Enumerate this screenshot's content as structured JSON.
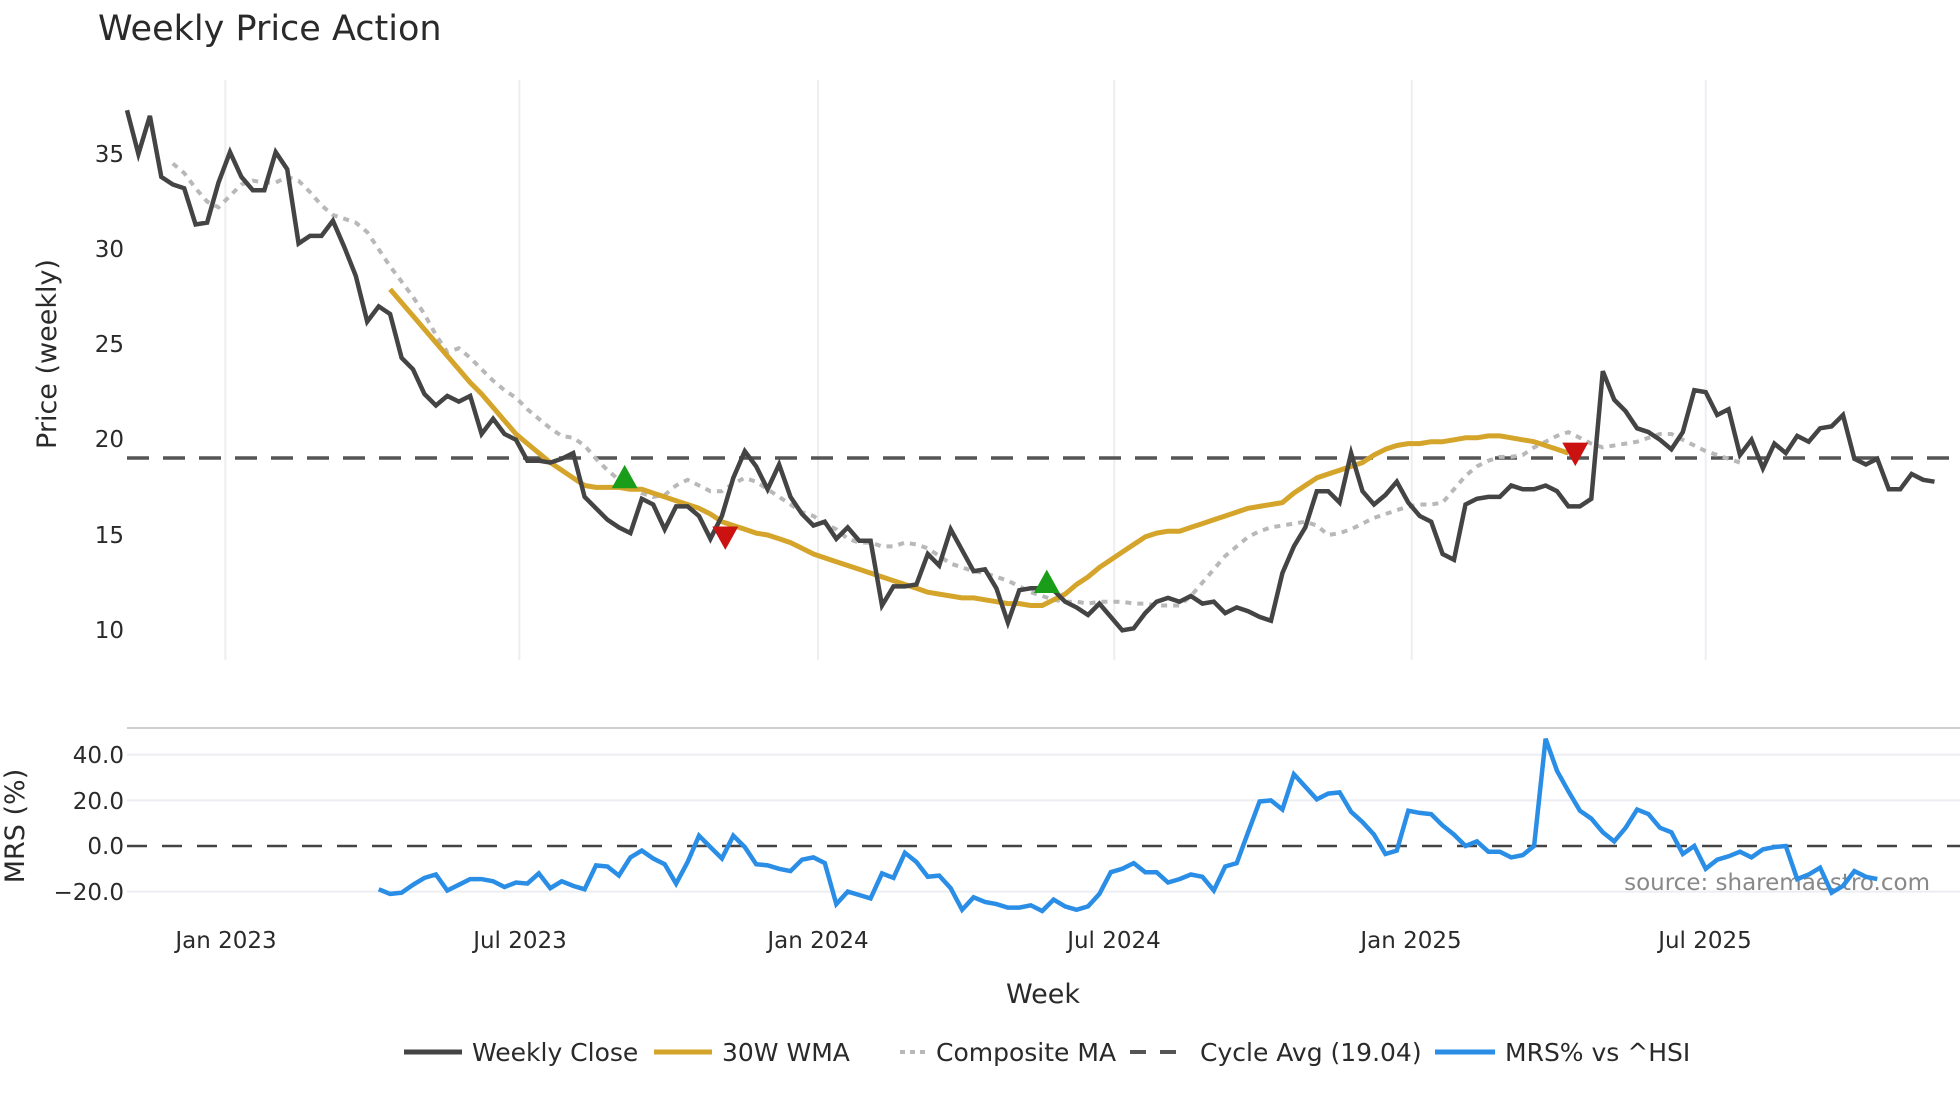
{
  "chart_data": [
    {
      "type": "line",
      "title": "Weekly Price Action",
      "xlabel": "Week",
      "ylabel": "Price (weekly)",
      "ylim": [
        8.5,
        38
      ],
      "yticks": [
        10,
        15,
        20,
        25,
        30,
        35
      ],
      "x_tick_labels": [
        "Jan 2023",
        "Jul 2023",
        "Jan 2024",
        "Jul 2024",
        "Jan 2025",
        "Jul 2025"
      ],
      "x_tick_weeks": [
        8.6,
        34.3,
        60.4,
        86.3,
        112.3,
        138.0
      ],
      "grid": "vertical",
      "reference_line": {
        "name": "Cycle Avg (19.04)",
        "value": 19.04
      },
      "series": [
        {
          "name": "Weekly Close",
          "start_week": 0,
          "values": [
            37.3,
            35.0,
            37.0,
            33.8,
            33.4,
            33.2,
            31.3,
            31.4,
            33.5,
            35.1,
            33.8,
            33.1,
            33.1,
            35.1,
            34.2,
            30.3,
            30.7,
            30.7,
            31.5,
            30.1,
            28.6,
            26.2,
            27.0,
            26.6,
            24.3,
            23.7,
            22.4,
            21.8,
            22.3,
            22.0,
            22.3,
            20.3,
            21.1,
            20.3,
            20.0,
            18.9,
            18.9,
            18.8,
            19.0,
            19.3,
            17.0,
            16.4,
            15.8,
            15.4,
            15.1,
            16.9,
            16.6,
            15.3,
            16.5,
            16.5,
            16.0,
            14.8,
            16.0,
            18.0,
            19.4,
            18.6,
            17.4,
            18.7,
            17.0,
            16.1,
            15.5,
            15.7,
            14.8,
            15.4,
            14.7,
            14.7,
            11.3,
            12.3,
            12.3,
            12.4,
            14.0,
            13.4,
            15.3,
            14.2,
            13.1,
            13.2,
            12.2,
            10.4,
            12.1,
            12.2,
            12.2,
            12.1,
            11.5,
            11.2,
            10.8,
            11.4,
            10.7,
            10.0,
            10.1,
            10.9,
            11.5,
            11.7,
            11.5,
            11.8,
            11.4,
            11.5,
            10.9,
            11.2,
            11.0,
            10.7,
            10.5,
            13.0,
            14.4,
            15.4,
            17.3,
            17.3,
            16.7,
            19.3,
            17.3,
            16.6,
            17.1,
            17.8,
            16.7,
            16.0,
            15.7,
            14.0,
            13.7,
            16.6,
            16.9,
            17.0,
            17.0,
            17.6,
            17.4,
            17.4,
            17.6,
            17.3,
            16.5,
            16.5,
            16.9,
            23.6,
            22.1,
            21.5,
            20.6,
            20.4,
            20.0,
            19.5,
            20.4,
            22.6,
            22.5,
            21.3,
            21.6,
            19.2,
            20.0,
            18.5,
            19.8,
            19.3,
            20.2,
            19.9,
            20.6,
            20.7,
            21.3,
            19.0,
            18.7,
            19.0,
            17.4,
            17.4,
            18.2,
            17.9,
            17.8
          ]
        },
        {
          "name": "30W WMA",
          "start_week": 23,
          "values": [
            27.9,
            27.2,
            26.5,
            25.8,
            25.1,
            24.4,
            23.7,
            23.0,
            22.4,
            21.7,
            21.0,
            20.3,
            19.8,
            19.3,
            18.8,
            18.4,
            18.0,
            17.6,
            17.5,
            17.5,
            17.5,
            17.4,
            17.4,
            17.2,
            17.0,
            16.8,
            16.6,
            16.4,
            16.1,
            15.7,
            15.5,
            15.3,
            15.1,
            15.0,
            14.8,
            14.6,
            14.3,
            14.0,
            13.8,
            13.6,
            13.4,
            13.2,
            13.0,
            12.8,
            12.6,
            12.4,
            12.2,
            12.0,
            11.9,
            11.8,
            11.7,
            11.7,
            11.6,
            11.5,
            11.4,
            11.4,
            11.3,
            11.3,
            11.6,
            11.9,
            12.4,
            12.8,
            13.3,
            13.7,
            14.1,
            14.5,
            14.9,
            15.1,
            15.2,
            15.2,
            15.4,
            15.6,
            15.8,
            16.0,
            16.2,
            16.4,
            16.5,
            16.6,
            16.7,
            17.2,
            17.6,
            18.0,
            18.2,
            18.4,
            18.6,
            18.8,
            19.2,
            19.5,
            19.7,
            19.8,
            19.8,
            19.9,
            19.9,
            20.0,
            20.1,
            20.1,
            20.2,
            20.2,
            20.1,
            20.0,
            19.9,
            19.7,
            19.5,
            19.3
          ]
        },
        {
          "name": "Composite MA",
          "start_week": 4,
          "values": [
            34.5,
            34.0,
            33.2,
            32.5,
            32.2,
            32.8,
            33.4,
            33.6,
            33.5,
            33.5,
            33.8,
            33.6,
            33.0,
            32.3,
            31.8,
            31.6,
            31.4,
            30.9,
            30.0,
            29.1,
            28.3,
            27.5,
            26.6,
            25.5,
            24.6,
            24.8,
            24.3,
            23.7,
            23.1,
            22.6,
            22.2,
            21.6,
            21.1,
            20.6,
            20.2,
            20.1,
            19.7,
            19.0,
            18.4,
            17.9,
            17.6,
            17.2,
            17.0,
            17.1,
            17.6,
            17.9,
            17.6,
            17.3,
            17.3,
            17.7,
            18.0,
            17.8,
            17.4,
            17.0,
            16.6,
            16.2,
            16.0,
            15.6,
            15.3,
            14.8,
            14.6,
            14.6,
            14.4,
            14.4,
            14.6,
            14.5,
            14.3,
            13.9,
            13.5,
            13.3,
            13.1,
            13.0,
            12.8,
            12.6,
            12.3,
            12.0,
            11.8,
            11.6,
            11.5,
            11.5,
            11.4,
            11.5,
            11.5,
            11.5,
            11.4,
            11.4,
            11.3,
            11.3,
            11.3,
            11.8,
            12.5,
            13.2,
            13.9,
            14.4,
            14.9,
            15.2,
            15.4,
            15.5,
            15.6,
            15.7,
            15.5,
            15.0,
            15.1,
            15.3,
            15.6,
            15.9,
            16.1,
            16.3,
            16.5,
            16.6,
            16.6,
            16.7,
            17.4,
            18.1,
            18.6,
            18.9,
            19.1,
            19.1,
            19.2,
            19.6,
            19.9,
            20.2,
            20.4,
            20.1,
            19.8,
            19.6,
            19.7,
            19.8,
            19.9,
            20.1,
            20.3,
            20.3,
            20.0,
            19.7,
            19.4,
            19.2,
            19.0,
            18.8
          ]
        }
      ],
      "markers": [
        {
          "type": "buy",
          "shape": "triangle-up",
          "color": "#1a9e1a",
          "week": 43.5,
          "value": 18.0
        },
        {
          "type": "sell",
          "shape": "triangle-down",
          "color": "#cc1111",
          "week": 52.3,
          "value": 14.9
        },
        {
          "type": "buy",
          "shape": "triangle-up",
          "color": "#1a9e1a",
          "week": 80.4,
          "value": 12.5
        },
        {
          "type": "sell",
          "shape": "triangle-down",
          "color": "#cc1111",
          "week": 126.6,
          "value": 19.3
        }
      ]
    },
    {
      "type": "line",
      "title": "",
      "xlabel": "Week",
      "ylabel": "MRS (%)",
      "ylim": [
        -30,
        52
      ],
      "yticks": [
        -20.0,
        0.0,
        20.0,
        40.0
      ],
      "ytick_labels": [
        "−20.0",
        "0.0",
        "20.0",
        "40.0"
      ],
      "reference_line": {
        "name": "zero",
        "value": 0
      },
      "series": [
        {
          "name": "MRS% vs ^HSI",
          "start_week": 22,
          "values": [
            -19,
            -21,
            -20.5,
            -17,
            -14,
            -12.5,
            -19.5,
            -17,
            -14.5,
            -14.5,
            -15.5,
            -18,
            -16,
            -16.5,
            -12,
            -18.5,
            -15.5,
            -17.5,
            -19,
            -8.5,
            -9,
            -13,
            -5,
            -2,
            -5.5,
            -8,
            -16.5,
            -7,
            4.5,
            -0.5,
            -5.5,
            4.5,
            -0.5,
            -8,
            -8.5,
            -10,
            -11,
            -6,
            -5,
            -7.5,
            -25.5,
            -20,
            -21.5,
            -23,
            -12,
            -14,
            -3,
            -7,
            -13.5,
            -13,
            -18.5,
            -28,
            -22.5,
            -24.5,
            -25.5,
            -27,
            -27,
            -26,
            -28.5,
            -23.5,
            -26.5,
            -28,
            -26.5,
            -21,
            -11.5,
            -10,
            -7.5,
            -11.5,
            -11.5,
            -16,
            -14.5,
            -12.5,
            -13.5,
            -19.5,
            -9,
            -7.5,
            6,
            19.5,
            20,
            16,
            31.5,
            26,
            20.5,
            23,
            23.5,
            15,
            10.5,
            5,
            -3.5,
            -2,
            15.5,
            14.5,
            14,
            9,
            5,
            0,
            2,
            -2.5,
            -2.5,
            -5,
            -4,
            0,
            47,
            33,
            24,
            15.5,
            12,
            6,
            2,
            8,
            16,
            14,
            8,
            6,
            -3.5,
            0,
            -10,
            -6,
            -4.5,
            -2.5,
            -5,
            -1.5,
            -0.5,
            0,
            -14.5,
            -12.5,
            -9.5,
            -20.5,
            -17.5,
            -11,
            -13.5,
            -14.5
          ]
        }
      ],
      "annotation": "source: sharemaestro.com"
    }
  ],
  "header": {
    "title": "Weekly Price Action"
  },
  "axes": {
    "price_ylabel": "Price (weekly)",
    "mrs_ylabel": "MRS (%)",
    "xlabel": "Week",
    "price_yticks": [
      "10",
      "15",
      "20",
      "25",
      "30",
      "35"
    ],
    "mrs_yticks": [
      "−20.0",
      "0.0",
      "20.0",
      "40.0"
    ],
    "xticks": [
      "Jan 2023",
      "Jul 2023",
      "Jan 2024",
      "Jul 2024",
      "Jan 2025",
      "Jul 2025"
    ]
  },
  "legend": {
    "items": [
      {
        "label": "Weekly Close",
        "color": "#444444",
        "style": "solid"
      },
      {
        "label": "30W WMA",
        "color": "#d4a52a",
        "style": "solid"
      },
      {
        "label": "Composite MA",
        "color": "#b8b8b8",
        "style": "dotted"
      },
      {
        "label": "Cycle Avg (19.04)",
        "color": "#555555",
        "style": "dashed"
      },
      {
        "label": "MRS% vs ^HSI",
        "color": "#2b8ee6",
        "style": "solid"
      }
    ]
  },
  "source_note": "source: sharemaestro.com",
  "colors": {
    "close": "#444444",
    "wma": "#d4a52a",
    "composite": "#b8b8b8",
    "cycle_avg": "#555555",
    "mrs": "#2b8ee6",
    "buy": "#1a9e1a",
    "sell": "#cc1111",
    "grid": "#eceef2"
  }
}
